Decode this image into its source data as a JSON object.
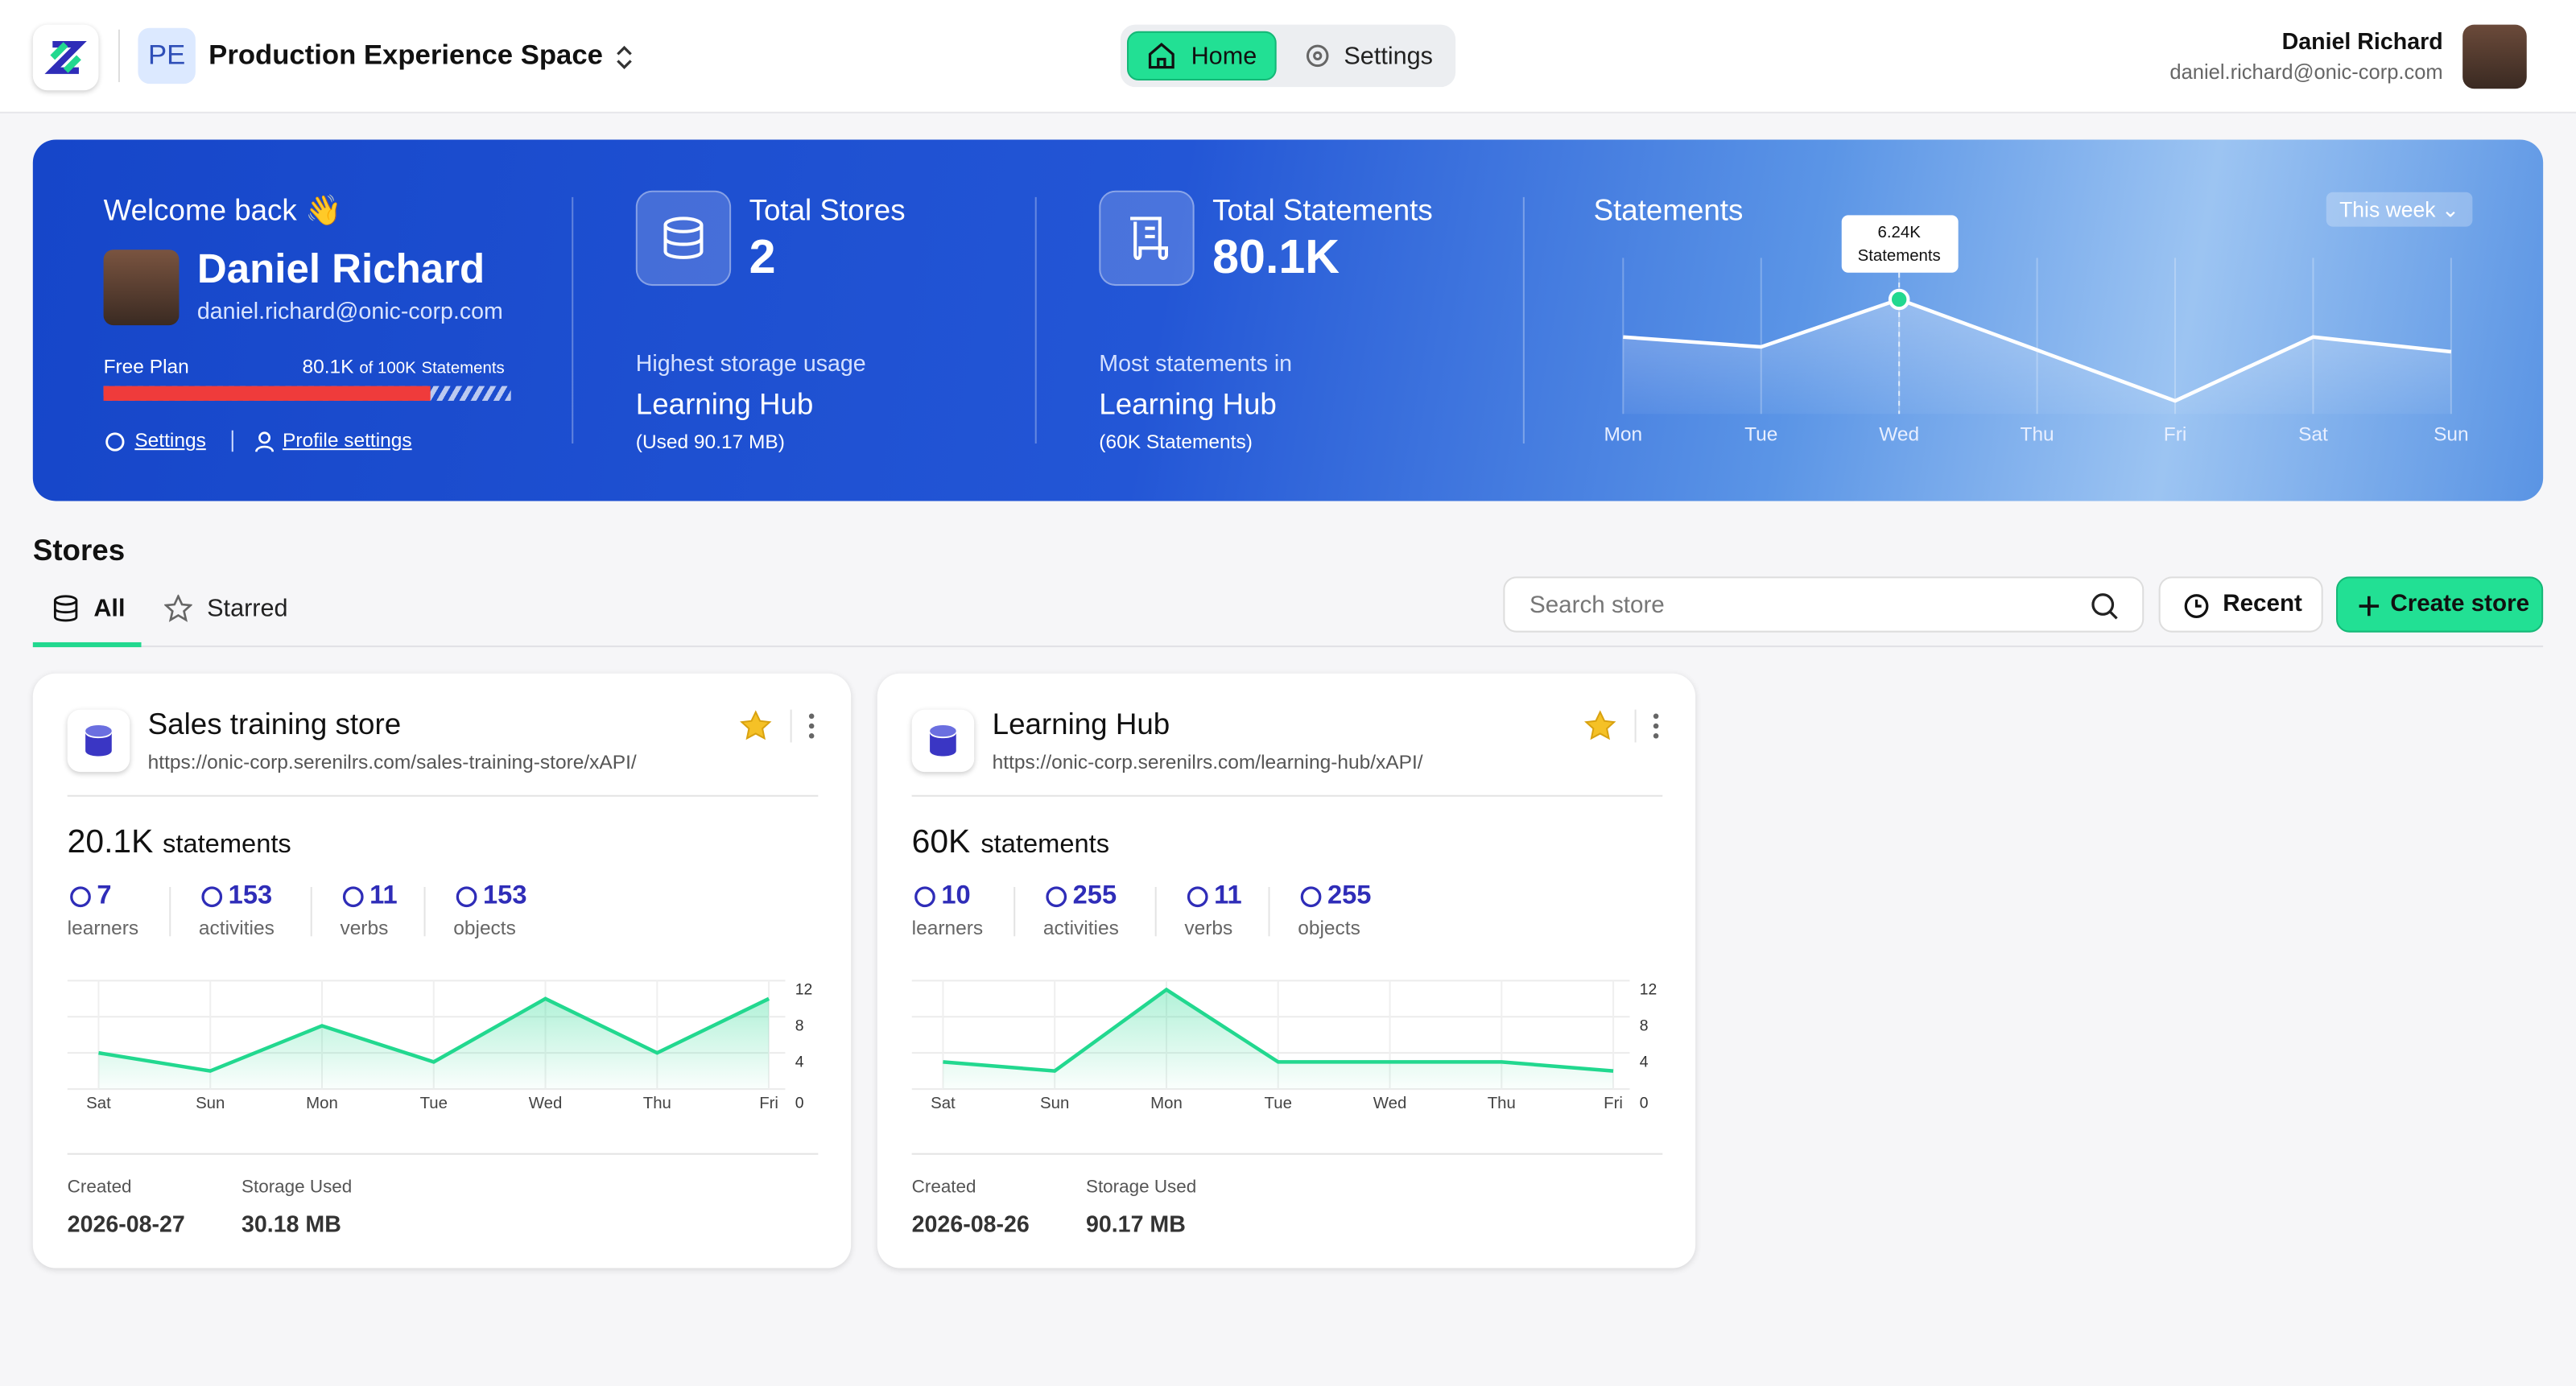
{
  "header": {
    "workspace_initials": "PE",
    "workspace_name": "Production Experience Space",
    "nav": [
      "Home",
      "Settings"
    ],
    "user_name": "Daniel Richard",
    "user_email": "daniel.richard@onic-corp.com"
  },
  "hero": {
    "welcome": "Welcome back 👋",
    "name": "Daniel Richard",
    "email": "daniel.richard@onic-corp.com",
    "plan": "Free Plan",
    "usage": {
      "used": {
        "value": 80100,
        "label": "80.1K"
      },
      "limit": {
        "value": 100000,
        "label": "of 100K"
      },
      "unit": "Statements"
    },
    "links": [
      "Settings",
      "Profile settings"
    ],
    "stats": [
      {
        "title": "Total Stores",
        "value": "2",
        "caption": "Highest storage usage",
        "name": "Learning Hub",
        "detail": "(Used 90.17 MB)"
      },
      {
        "title": "Total Statements",
        "value": "80.1K",
        "caption": "Most statements in",
        "name": "Learning Hub",
        "detail": "(60K Statements)"
      }
    ]
  },
  "chart_data": [
    {
      "type": "line",
      "title": "Statements",
      "filter": "This week",
      "categories": [
        "Mon",
        "Tue",
        "Wed",
        "Thu",
        "Fri",
        "Sat",
        "Sun"
      ],
      "values": [
        4190,
        3650,
        6240,
        3480,
        710,
        4190,
        3390
      ],
      "value_labels": [
        null,
        null,
        "6.24K",
        null,
        null,
        null,
        null
      ],
      "tooltip_label": "Statements",
      "ylim": [
        0,
        8500
      ],
      "color": "#ffffff"
    },
    {
      "type": "line",
      "categories": [
        "Sat",
        "Sun",
        "Mon",
        "Tue",
        "Wed",
        "Thu",
        "Fri"
      ],
      "values": [
        4,
        2,
        7,
        3,
        10,
        4,
        10
      ],
      "ylim": [
        0,
        12
      ],
      "yticks": [
        0,
        4,
        8,
        12
      ],
      "color": "#22d88f"
    },
    {
      "type": "line",
      "categories": [
        "Sat",
        "Sun",
        "Mon",
        "Tue",
        "Wed",
        "Thu",
        "Fri"
      ],
      "values": [
        3,
        2,
        11,
        3,
        3,
        3,
        2
      ],
      "ylim": [
        0,
        12
      ],
      "yticks": [
        0,
        4,
        8,
        12
      ],
      "color": "#22d88f"
    }
  ],
  "stores": {
    "title": "Stores",
    "tabs": [
      "All",
      "Starred"
    ],
    "search_placeholder": "Search store",
    "buttons": [
      "Recent",
      "Create store"
    ],
    "cards": [
      {
        "name": "Sales training store",
        "url": "https://onic-corp.serenilrs.com/sales-training-store/xAPI/",
        "statements": "20.1K",
        "statements_label": "statements",
        "stats": [
          {
            "value": "7",
            "label": "learners"
          },
          {
            "value": "153",
            "label": "activities"
          },
          {
            "value": "11",
            "label": "verbs"
          },
          {
            "value": "153",
            "label": "objects"
          }
        ],
        "created_label": "Created",
        "created": "2026-08-27",
        "storage_label": "Storage Used",
        "storage": "30.18 MB"
      },
      {
        "name": "Learning Hub",
        "url": "https://onic-corp.serenilrs.com/learning-hub/xAPI/",
        "statements": "60K",
        "statements_label": "statements",
        "stats": [
          {
            "value": "10",
            "label": "learners"
          },
          {
            "value": "255",
            "label": "activities"
          },
          {
            "value": "11",
            "label": "verbs"
          },
          {
            "value": "255",
            "label": "objects"
          }
        ],
        "created_label": "Created",
        "created": "2026-08-26",
        "storage_label": "Storage Used",
        "storage": "90.17 MB"
      }
    ]
  }
}
